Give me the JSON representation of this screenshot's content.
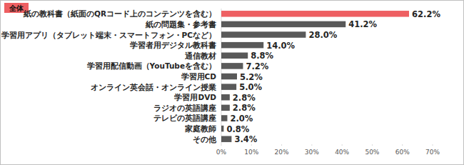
{
  "chart_data": {
    "type": "bar",
    "title": "全体",
    "orientation": "horizontal",
    "categories": [
      "紙の教科書（紙面のQRコード上のコンテンツを含む）",
      "紙の問題集・参考書",
      "学習用アプリ（タブレット端末・スマートフォン・PCなど）",
      "学習者用デジタル教科書",
      "通信教材",
      "学習用配信動画（YouTubeを含む）",
      "学習用CD",
      "オンライン英会話・オンライン授業",
      "学習用DVD",
      "ラジオの英語講座",
      "テレビの英語講座",
      "家庭教師",
      "その他"
    ],
    "values": [
      62.2,
      41.2,
      28.0,
      14.0,
      8.8,
      7.2,
      5.2,
      5.0,
      2.8,
      2.8,
      2.0,
      0.8,
      3.4
    ],
    "value_labels": [
      "62.2%",
      "41.2%",
      "28.0%",
      "14.0%",
      "8.8%",
      "7.2%",
      "5.2%",
      "5.0%",
      "2.8%",
      "2.8%",
      "2.0%",
      "0.8%",
      "3.4%"
    ],
    "colors": [
      "#ee5f62",
      "#595959",
      "#595959",
      "#595959",
      "#595959",
      "#595959",
      "#595959",
      "#595959",
      "#595959",
      "#595959",
      "#595959",
      "#595959",
      "#595959"
    ],
    "xlim": [
      0,
      70
    ],
    "xticks": [
      {
        "value": 0,
        "label": "0%"
      },
      {
        "value": 10,
        "label": "10%"
      },
      {
        "value": 20,
        "label": "20%"
      },
      {
        "value": 30,
        "label": "30%"
      },
      {
        "value": 40,
        "label": "40%"
      },
      {
        "value": 50,
        "label": "50%"
      },
      {
        "value": 60,
        "label": "60%"
      },
      {
        "value": 70,
        "label": "70%"
      }
    ],
    "grid": false,
    "data_labels": true
  }
}
